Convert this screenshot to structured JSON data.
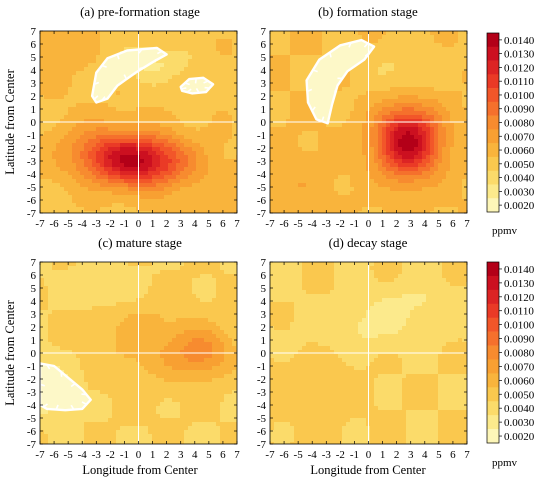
{
  "chart_data": {
    "type": "heatmap",
    "xlabel": "Longitude from Center",
    "ylabel": "Latitude from Center",
    "x_ticks": [
      "-7",
      "-6",
      "-5",
      "-4",
      "-3",
      "-2",
      "-1",
      "0",
      "1",
      "2",
      "3",
      "4",
      "5",
      "6",
      "7"
    ],
    "y_ticks": [
      "7",
      "6",
      "5",
      "4",
      "3",
      "2",
      "1",
      "0",
      "-1",
      "-2",
      "-3",
      "-4",
      "-5",
      "-6",
      "-7"
    ],
    "xlim": [
      -7,
      7
    ],
    "ylim": [
      -7,
      7
    ],
    "colorbar": {
      "unit": "ppmv",
      "levels": [
        "0.0140",
        "0.0130",
        "0.0120",
        "0.0110",
        "0.0100",
        "0.0090",
        "0.0080",
        "0.0070",
        "0.0060",
        "0.0050",
        "0.0040",
        "0.0030",
        "0.0020"
      ],
      "colors": [
        "#b30018",
        "#cc1020",
        "#dc2424",
        "#ea3a26",
        "#f25629",
        "#f5702c",
        "#f78b2f",
        "#f8a032",
        "#f9b43c",
        "#fac84e",
        "#fbdb6a",
        "#fcea8c",
        "#fdf6b8"
      ]
    },
    "panels": [
      {
        "title": "(a)  pre-formation stage",
        "background": 0.0058,
        "features": [
          {
            "x": 0.0,
            "y": -3.0,
            "amp": 0.008,
            "sx": 2.4,
            "sy": 1.4
          },
          {
            "x": -3.0,
            "y": -2.0,
            "amp": 0.002,
            "sx": 2.0,
            "sy": 1.5
          },
          {
            "x": 1.0,
            "y": 4.5,
            "amp": -0.002,
            "sx": 1.8,
            "sy": 1.0
          },
          {
            "x": -6.0,
            "y": 6.0,
            "amp": 0.0008,
            "sx": 2.0,
            "sy": 2.0
          },
          {
            "x": 6.0,
            "y": -6.0,
            "amp": 0.0008,
            "sx": 2.0,
            "sy": 2.0
          }
        ],
        "low_regions": [
          {
            "label": "< 0.0020",
            "outline": [
              [
                -3.3,
                2.0
              ],
              [
                -3.0,
                3.8
              ],
              [
                -2.2,
                4.9
              ],
              [
                -0.8,
                5.5
              ],
              [
                1.3,
                5.7
              ],
              [
                2.0,
                5.2
              ],
              [
                1.0,
                4.6
              ],
              [
                -0.2,
                3.8
              ],
              [
                -1.5,
                2.8
              ],
              [
                -2.2,
                1.8
              ],
              [
                -3.0,
                1.5
              ]
            ]
          },
          {
            "label": "< 0.0020",
            "outline": [
              [
                3.0,
                2.7
              ],
              [
                3.6,
                3.3
              ],
              [
                4.6,
                3.4
              ],
              [
                5.3,
                2.9
              ],
              [
                4.8,
                2.3
              ],
              [
                3.8,
                2.2
              ],
              [
                3.1,
                2.4
              ]
            ]
          }
        ]
      },
      {
        "title": "(b)  formation stage",
        "background": 0.006,
        "features": [
          {
            "x": 2.8,
            "y": -1.5,
            "amp": 0.0085,
            "sx": 1.6,
            "sy": 1.9
          },
          {
            "x": 2.5,
            "y": 4.0,
            "amp": -0.0012,
            "sx": 2.0,
            "sy": 1.5
          },
          {
            "x": -5.5,
            "y": -5.0,
            "amp": 0.0008,
            "sx": 2.0,
            "sy": 2.0
          }
        ],
        "low_regions": [
          {
            "label": "< 0.0020",
            "outline": [
              [
                -4.3,
                1.5
              ],
              [
                -4.4,
                3.2
              ],
              [
                -3.5,
                4.8
              ],
              [
                -2.0,
                5.9
              ],
              [
                -0.5,
                6.3
              ],
              [
                0.4,
                5.8
              ],
              [
                -0.3,
                4.8
              ],
              [
                -1.5,
                3.9
              ],
              [
                -2.2,
                2.8
              ],
              [
                -2.6,
                1.3
              ],
              [
                -2.9,
                -0.1
              ],
              [
                -3.7,
                0.2
              ]
            ]
          }
        ]
      },
      {
        "title": "(c)  mature stage",
        "background": 0.005,
        "features": [
          {
            "x": 4.5,
            "y": 0.0,
            "amp": 0.0032,
            "sx": 1.6,
            "sy": 1.4
          },
          {
            "x": 0.5,
            "y": 1.0,
            "amp": 0.0015,
            "sx": 2.5,
            "sy": 2.5
          },
          {
            "x": -6.5,
            "y": -2.8,
            "amp": -0.0025,
            "sx": 1.2,
            "sy": 1.3
          },
          {
            "x": -2.0,
            "y": 5.0,
            "amp": -0.001,
            "sx": 2.0,
            "sy": 1.2
          }
        ],
        "low_regions": [
          {
            "label": "< 0.0020",
            "outline": [
              [
                -7.0,
                -0.8
              ],
              [
                -6.0,
                -1.0
              ],
              [
                -5.0,
                -1.9
              ],
              [
                -4.0,
                -2.8
              ],
              [
                -3.4,
                -3.6
              ],
              [
                -4.0,
                -4.3
              ],
              [
                -5.2,
                -4.4
              ],
              [
                -6.5,
                -4.3
              ],
              [
                -7.0,
                -4.0
              ]
            ]
          }
        ]
      },
      {
        "title": "(d)  decay stage",
        "background": 0.005,
        "features": [
          {
            "x": 0.0,
            "y": 2.0,
            "amp": -0.0012,
            "sx": 3.0,
            "sy": 1.2
          },
          {
            "x": 3.0,
            "y": 4.0,
            "amp": -0.001,
            "sx": 2.5,
            "sy": 1.0
          },
          {
            "x": -4.0,
            "y": -3.0,
            "amp": 0.0008,
            "sx": 2.0,
            "sy": 2.0
          }
        ],
        "low_regions": []
      }
    ]
  }
}
